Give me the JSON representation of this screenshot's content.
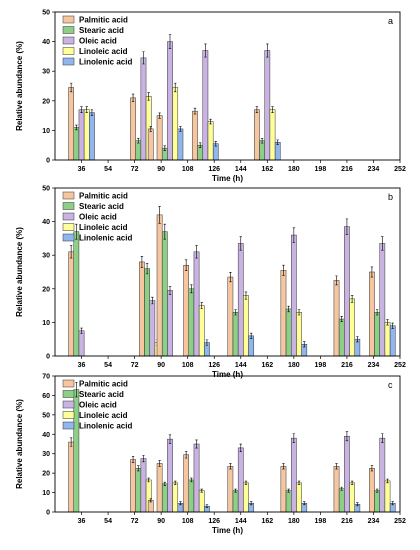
{
  "colors": {
    "Palmitic acid": "#f6c6a0",
    "Stearic acid": "#8ccf86",
    "Oleic acid": "#c9b3e3",
    "Linoleic acid": "#ffff99",
    "Linolenic acid": "#8fb6ee"
  },
  "chart_data": [
    {
      "type": "bar",
      "panel_label": "a",
      "xlabel": "Time (h)",
      "ylabel": "Relative abundance (%)",
      "ylim": [
        0,
        50
      ],
      "yticks": [
        0,
        10,
        20,
        30,
        40,
        50
      ],
      "xlim": [
        18,
        252
      ],
      "xticks": [
        36,
        54,
        72,
        90,
        108,
        126,
        144,
        162,
        180,
        198,
        216,
        234,
        252
      ],
      "legend_position": "top-left",
      "series_names": [
        "Palmitic acid",
        "Stearic acid",
        "Oleic acid",
        "Linoleic acid",
        "Linolenic acid"
      ],
      "groups": [
        {
          "x": 36,
          "values": [
            24.5,
            11,
            17,
            17,
            16
          ]
        },
        {
          "x": 78,
          "values": [
            21,
            6.5,
            34.5,
            21.5,
            0
          ]
        },
        {
          "x": 90,
          "values": [
            10.5,
            0,
            0,
            0,
            0
          ]
        },
        {
          "x": 96,
          "values": [
            15,
            4,
            40,
            24.5,
            10.5
          ]
        },
        {
          "x": 120,
          "values": [
            16.5,
            5,
            37,
            13,
            5.5
          ]
        },
        {
          "x": 162,
          "values": [
            17,
            6.5,
            37,
            17,
            6
          ]
        }
      ]
    },
    {
      "type": "bar",
      "panel_label": "b",
      "xlabel": "Time (h)",
      "ylabel": "Relative abundance (%)",
      "ylim": [
        0,
        50
      ],
      "yticks": [
        0,
        10,
        20,
        30,
        40,
        50
      ],
      "xlim": [
        18,
        252
      ],
      "xticks": [
        36,
        54,
        72,
        90,
        108,
        126,
        144,
        162,
        180,
        198,
        216,
        234,
        252
      ],
      "legend_position": "top-left",
      "series_names": [
        "Palmitic acid",
        "Stearic acid",
        "Oleic acid",
        "Linoleic acid",
        "Linolenic acid"
      ],
      "groups": [
        {
          "x": 36,
          "values": [
            31,
            37,
            7.5,
            0,
            0
          ]
        },
        {
          "x": 84,
          "values": [
            28,
            26,
            16.5,
            4,
            2
          ]
        },
        {
          "x": 96,
          "values": [
            42,
            37,
            19.5,
            0,
            0
          ]
        },
        {
          "x": 114,
          "values": [
            27,
            20,
            31,
            15,
            4
          ]
        },
        {
          "x": 144,
          "values": [
            23.5,
            13,
            33.5,
            18,
            6
          ]
        },
        {
          "x": 180,
          "values": [
            25.5,
            14,
            36,
            13,
            3.5
          ]
        },
        {
          "x": 216,
          "values": [
            22.5,
            11,
            38.5,
            17,
            5
          ]
        },
        {
          "x": 240,
          "values": [
            25,
            13,
            33.5,
            10,
            9
          ]
        }
      ]
    },
    {
      "type": "bar",
      "panel_label": "c",
      "xlabel": "Time (h)",
      "ylabel": "Relative abundance (%)",
      "ylim": [
        0,
        70
      ],
      "yticks": [
        0,
        10,
        20,
        30,
        40,
        50,
        60,
        70
      ],
      "xlim": [
        18,
        252
      ],
      "xticks": [
        36,
        54,
        72,
        90,
        108,
        126,
        144,
        162,
        180,
        198,
        216,
        234,
        252
      ],
      "legend_position": "top-left",
      "series_names": [
        "Palmitic acid",
        "Stearic acid",
        "Oleic acid",
        "Linoleic acid",
        "Linolenic acid"
      ],
      "groups": [
        {
          "x": 36,
          "values": [
            36,
            63,
            0,
            0,
            0
          ]
        },
        {
          "x": 78,
          "values": [
            27,
            22.5,
            27.5,
            16.5,
            0
          ]
        },
        {
          "x": 90,
          "values": [
            6,
            0,
            0,
            0,
            0
          ]
        },
        {
          "x": 96,
          "values": [
            25,
            14.5,
            37.5,
            15,
            4.5
          ]
        },
        {
          "x": 114,
          "values": [
            29.5,
            16.5,
            35,
            11,
            3
          ]
        },
        {
          "x": 144,
          "values": [
            23.5,
            11,
            33,
            15,
            4.5
          ]
        },
        {
          "x": 180,
          "values": [
            23.5,
            11,
            38,
            15,
            4.5
          ]
        },
        {
          "x": 216,
          "values": [
            23.5,
            12,
            39,
            15,
            4
          ]
        },
        {
          "x": 240,
          "values": [
            22.5,
            11,
            38,
            16,
            4.5
          ]
        }
      ]
    }
  ]
}
